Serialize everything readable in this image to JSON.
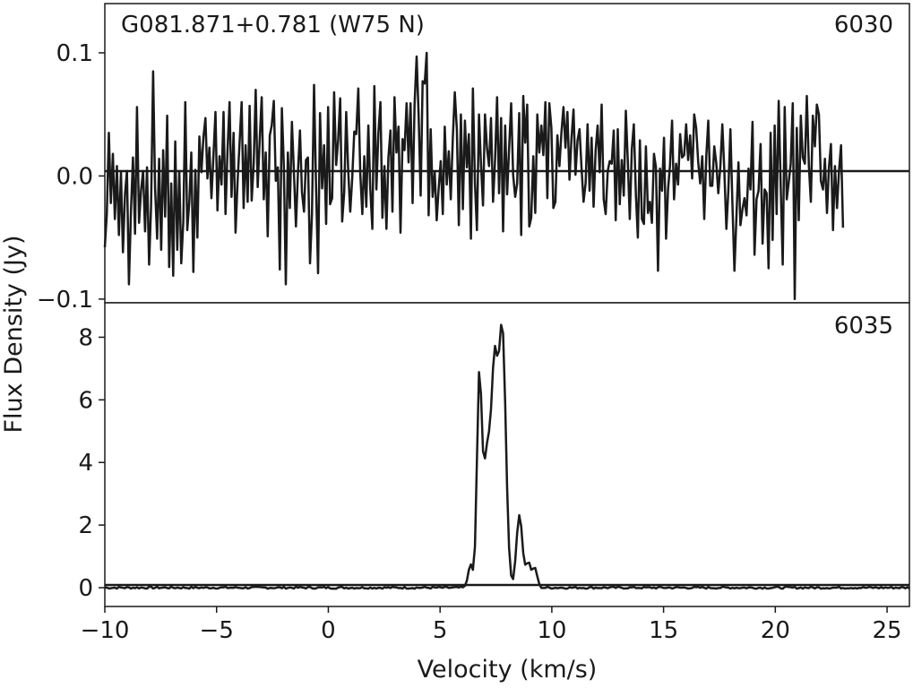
{
  "chart_data": {
    "type": "line",
    "source_label": "G081.871+0.781 (W75 N)",
    "xlabel": "Velocity (km/s)",
    "ylabel": "Flux Density (Jy)",
    "xlim": [
      -10,
      26
    ],
    "x_ticks": [
      -10,
      -5,
      0,
      5,
      10,
      15,
      20,
      25
    ],
    "x_tick_labels": [
      "−10",
      "−5",
      "0",
      "5",
      "10",
      "15",
      "20",
      "25"
    ],
    "line_color": "#1a1a1a",
    "panels": [
      {
        "label": "6030",
        "ylim": [
          -0.103,
          0.14
        ],
        "y_ticks": [
          -0.1,
          0.0,
          0.1
        ],
        "y_tick_labels": [
          "−0.1",
          "0.0",
          "0.1"
        ],
        "baseline": 0,
        "series": {
          "x_start": -10,
          "x_step": 0.09,
          "values": [
            -0.058,
            -0.031,
            0.035,
            -0.022,
            0.018,
            -0.035,
            0.008,
            -0.048,
            0.003,
            -0.062,
            -0.015,
            0.004,
            -0.088,
            -0.028,
            0.015,
            -0.047,
            0.056,
            -0.038,
            -0.012,
            0.004,
            -0.045,
            0.007,
            -0.072,
            -0.025,
            0.085,
            -0.01,
            -0.051,
            0.014,
            -0.06,
            0.021,
            -0.033,
            0.049,
            -0.074,
            -0.006,
            -0.081,
            0.028,
            -0.06,
            0.004,
            -0.071,
            -0.037,
            0.06,
            -0.044,
            -0.021,
            0.019,
            -0.078,
            0.005,
            -0.05,
            0.032,
            0.003,
            0.031,
            0.047,
            -0.002,
            0.023,
            -0.018,
            0.016,
            0.052,
            -0.028,
            0.016,
            -0.007,
            0.052,
            -0.031,
            0.02,
            0.06,
            -0.017,
            0.035,
            -0.046,
            -0.004,
            0.027,
            0.06,
            -0.026,
            0.025,
            -0.021,
            0.057,
            -0.02,
            0.009,
            0.07,
            -0.009,
            0.03,
            0.064,
            -0.019,
            0.019,
            -0.049,
            0.033,
            0.041,
            0.061,
            -0.004,
            0.007,
            -0.076,
            0.055,
            0.008,
            -0.088,
            0.019,
            -0.026,
            0.044,
            0.004,
            -0.041,
            0.002,
            0.037,
            -0.013,
            -0.029,
            0.013,
            0.015,
            -0.071,
            -0.031,
            0.074,
            -0.007,
            -0.079,
            0.051,
            -0.01,
            0.025,
            -0.039,
            0.056,
            -0.023,
            -0.018,
            0.068,
            0.009,
            0.029,
            0.063,
            -0.037,
            -0.013,
            0.052,
            0.005,
            -0.029,
            -0.002,
            0.036,
            0.034,
            0.071,
            0.002,
            -0.031,
            0.016,
            -0.025,
            0.041,
            -0.011,
            -0.043,
            0.073,
            -0.011,
            0.035,
            0.06,
            -0.034,
            0.008,
            -0.043,
            0.015,
            0.037,
            -0.029,
            0.064,
            0.019,
            0.04,
            -0.046,
            0.03,
            0.021,
            0.059,
            0.011,
            0.059,
            -0.022,
            0.058,
            0.097,
            0.05,
            -0.016,
            0.077,
            0.075,
            0.1,
            -0.032,
            0.038,
            -0.017,
            0.003,
            -0.036,
            -0.009,
            0.012,
            -0.031,
            0.04,
            -0.007,
            0.02,
            -0.019,
            0.031,
            0.068,
            0.038,
            -0.04,
            0.05,
            -0.027,
            0.045,
            0.007,
            0.034,
            -0.051,
            0.071,
            -0.006,
            -0.044,
            0.05,
            0.01,
            -0.024,
            0.05,
            0.023,
            0.008,
            0.047,
            -0.021,
            0.012,
            0.064,
            -0.014,
            0.047,
            -0.045,
            0.041,
            -0.015,
            0.022,
            0.059,
            0.001,
            -0.017,
            -0.006,
            0.051,
            -0.048,
            0.065,
            0.027,
            0.058,
            -0.041,
            -0.034,
            0.016,
            -0.03,
            0.05,
            0.019,
            0.041,
            0.017,
            0.06,
            -0.018,
            0.059,
            0.039,
            -0.026,
            -0.021,
            0.033,
            0.008,
            0.035,
            0.056,
            0.023,
            0.052,
            -0.003,
            0.03,
            0.054,
            0.001,
            0.029,
            0.038,
            0.006,
            -0.021,
            -0.006,
            0.042,
            -0.012,
            0.031,
            -0.025,
            0.021,
            0.041,
            0.003,
            0.058,
            -0.019,
            -0.031,
            0.004,
            0.012,
            0.01,
            0.037,
            -0.036,
            0.038,
            -0.023,
            0.013,
            -0.016,
            0.053,
            0.012,
            -0.035,
            0.022,
            0.042,
            -0.015,
            -0.05,
            0.029,
            -0.035,
            -0.039,
            0.024,
            -0.03,
            -0.021,
            -0.038,
            0.018,
            0.007,
            -0.077,
            0.006,
            -0.012,
            0.031,
            -0.051,
            -0.011,
            0.009,
            0.045,
            -0.019,
            0.01,
            -0.007,
            0.034,
            0.015,
            0.017,
            0.042,
            0.013,
            0.033,
            -0.002,
            0.05,
            0.039,
            0.011,
            -0.006,
            0.016,
            -0.035,
            0.016,
            0.045,
            -0.008,
            -0.008,
            0.024,
            0.01,
            -0.014,
            0.008,
            0.042,
            0.003,
            -0.043,
            -0.012,
            0.038,
            -0.021,
            -0.077,
            -0.034,
            0.011,
            -0.04,
            -0.027,
            -0.018,
            -0.032,
            0.006,
            -0.011,
            0.044,
            -0.064,
            -0.019,
            -0.012,
            0.026,
            -0.055,
            -0.011,
            -0.014,
            -0.075,
            0.035,
            -0.052,
            0.041,
            -0.031,
            0.061,
            -0.007,
            -0.072,
            0.056,
            -0.019,
            -0.005,
            0.01,
            0.059,
            -0.1,
            0.039,
            -0.036,
            0.049,
            0.015,
            0.01,
            0.065,
            0.008,
            -0.021,
            0.049,
            0.024,
            0.058,
            0.05,
            -0.004,
            -0.011,
            0.014,
            -0.03,
            0.007,
            0.026,
            -0.044,
            0.008,
            -0.026,
            0.004,
            0.025,
            -0.042
          ]
        }
      },
      {
        "label": "6035",
        "ylim": [
          -0.6,
          9.1
        ],
        "y_ticks": [
          0,
          2,
          4,
          6,
          8
        ],
        "y_tick_labels": [
          "0",
          "2",
          "4",
          "6",
          "8"
        ],
        "baseline": 0,
        "series": {
          "x_start": -10,
          "x_step": 0.09,
          "noise_sigma": 0.02,
          "components": [
            {
              "center": 6.35,
              "amplitude": 0.7,
              "sigma": 0.1
            },
            {
              "center": 6.75,
              "amplitude": 5.7,
              "sigma": 0.1
            },
            {
              "center": 7.15,
              "amplitude": 4.6,
              "sigma": 0.25
            },
            {
              "center": 7.45,
              "amplitude": 4.5,
              "sigma": 0.12
            },
            {
              "center": 7.78,
              "amplitude": 8.2,
              "sigma": 0.16
            },
            {
              "center": 8.55,
              "amplitude": 2.35,
              "sigma": 0.13
            },
            {
              "center": 8.95,
              "amplitude": 0.8,
              "sigma": 0.12
            },
            {
              "center": 9.25,
              "amplitude": 0.6,
              "sigma": 0.1
            }
          ]
        }
      }
    ]
  }
}
